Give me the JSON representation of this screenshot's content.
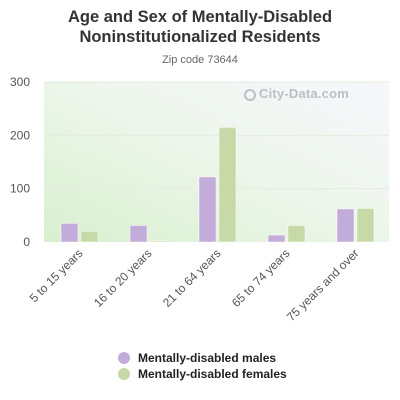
{
  "title_line1": "Age and Sex of Mentally-Disabled",
  "title_line2": "Noninstitutionalized Residents",
  "subtitle": "Zip code 73644",
  "watermark": "City-Data.com",
  "colors": {
    "males": "#c2acd9",
    "females": "#c6d9a6"
  },
  "chart_data": {
    "type": "bar",
    "categories": [
      "5 to 15 years",
      "16 to 20 years",
      "21 to 64 years",
      "65 to 74 years",
      "75 years and over"
    ],
    "series": [
      {
        "name": "Mentally-disabled males",
        "values": [
          35,
          31,
          122,
          13,
          62
        ]
      },
      {
        "name": "Mentally-disabled females",
        "values": [
          20,
          2,
          215,
          31,
          63
        ]
      }
    ],
    "ylim": [
      0,
      300
    ],
    "yticks": [
      0,
      100,
      200,
      300
    ],
    "grid": true,
    "legend": "bottom"
  }
}
